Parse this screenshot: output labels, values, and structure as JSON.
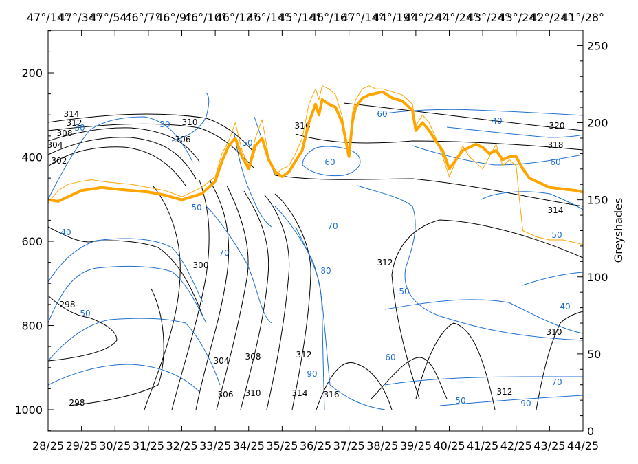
{
  "chart_data": {
    "type": "line",
    "title": "",
    "xlabel": "",
    "ylabel_left": "",
    "ylabel_right": "Greyshades",
    "top_tick_labels": [
      "47°/14°",
      "47°/34°",
      "47°/54°",
      "46°/7°",
      "46°/9°",
      "46°/10°",
      "46°/12°",
      "46°/14°",
      "45°/14°",
      "46°/16°",
      "47°/14°",
      "44°/19°",
      "44°/24°",
      "44°/24°",
      "43°/24°",
      "43°/24°",
      "42°/24°",
      "41°/28°"
    ],
    "bottom_tick_labels": [
      "28/25",
      "29/25",
      "30/25",
      "31/25",
      "32/25",
      "33/25",
      "34/25",
      "35/25",
      "36/25",
      "37/25",
      "38/25",
      "39/25",
      "40/25",
      "41/25",
      "42/25",
      "43/25",
      "44/25"
    ],
    "left_axis": {
      "ticks": [
        200,
        400,
        600,
        800,
        1000
      ],
      "ylim": [
        1050,
        100
      ],
      "note": "pressure hPa"
    },
    "right_axis": {
      "ticks": [
        0,
        50,
        100,
        150,
        200,
        250
      ],
      "ylim": [
        0,
        260
      ]
    },
    "colors": {
      "theta_isolines": "#000000",
      "humidity_isolines": "#1f6fd0",
      "greyshades": "#ffa500"
    },
    "isoline_labels_black": [
      "314",
      "312",
      "308",
      "304",
      "302",
      "310",
      "306",
      "316",
      "320",
      "318",
      "314",
      "300",
      "298",
      "298",
      "304",
      "306",
      "308",
      "310",
      "312",
      "314",
      "316",
      "312",
      "312",
      "310"
    ],
    "isoline_labels_blue": [
      "30",
      "30",
      "50",
      "40",
      "70",
      "50",
      "50",
      "70",
      "80",
      "60",
      "60",
      "40",
      "60",
      "50",
      "50",
      "40",
      "90",
      "60",
      "50",
      "70",
      "90"
    ],
    "series": [
      {
        "name": "",
        "axis": "right",
        "x": [
          28.0,
          28.3,
          28.6,
          29.0,
          29.3,
          29.6,
          30.0,
          30.5,
          31.0,
          31.5,
          32.0,
          32.3,
          32.6,
          33.0,
          33.2,
          33.4,
          33.6,
          33.8,
          34.0,
          34.2,
          34.4,
          34.6,
          34.8,
          35.0,
          35.2,
          35.4,
          35.6,
          35.8,
          36.0,
          36.1,
          36.2,
          36.4,
          36.6,
          36.8,
          37.0,
          37.1,
          37.2,
          37.4,
          37.6,
          37.8,
          38.0,
          38.3,
          38.6,
          38.9,
          39.0,
          39.2,
          39.4,
          39.6,
          39.8,
          40.0,
          40.2,
          40.4,
          40.6,
          40.8,
          41.0,
          41.2,
          41.4,
          41.6,
          41.8,
          42.0,
          42.2,
          42.4,
          42.6,
          43.0,
          43.4,
          43.8,
          44.0
        ],
        "values": [
          150,
          149,
          152,
          156,
          157,
          158,
          157,
          156,
          155,
          153,
          150,
          152,
          154,
          162,
          175,
          185,
          190,
          178,
          170,
          185,
          190,
          176,
          168,
          165,
          168,
          175,
          182,
          200,
          212,
          205,
          215,
          212,
          210,
          200,
          178,
          200,
          210,
          216,
          218,
          219,
          220,
          216,
          214,
          208,
          195,
          200,
          195,
          188,
          182,
          170,
          176,
          182,
          184,
          186,
          184,
          180,
          182,
          176,
          178,
          178,
          170,
          164,
          162,
          158,
          157,
          156,
          155
        ]
      },
      {
        "name": "",
        "axis": "right",
        "x": [
          28.0,
          28.3,
          28.6,
          29.0,
          29.3,
          29.6,
          30.0,
          30.5,
          31.0,
          31.5,
          32.0,
          32.3,
          32.6,
          33.0,
          33.2,
          33.4,
          33.6,
          33.8,
          34.0,
          34.2,
          34.4,
          34.6,
          34.8,
          35.0,
          35.2,
          35.4,
          35.6,
          35.8,
          36.0,
          36.1,
          36.2,
          36.4,
          36.6,
          36.8,
          37.0,
          37.1,
          37.2,
          37.4,
          37.6,
          37.8,
          38.0,
          38.3,
          38.6,
          38.9,
          39.0,
          39.2,
          39.4,
          39.6,
          39.8,
          40.0,
          40.2,
          40.4,
          40.6,
          40.8,
          41.0,
          41.2,
          41.4,
          41.6,
          41.8,
          42.0,
          42.1,
          42.2,
          42.4,
          42.6,
          43.0,
          43.4,
          43.8,
          44.0
        ],
        "values": [
          148,
          156,
          160,
          162,
          163,
          162,
          161,
          160,
          158,
          156,
          152,
          155,
          158,
          165,
          180,
          188,
          200,
          182,
          172,
          190,
          202,
          178,
          166,
          170,
          172,
          180,
          190,
          212,
          222,
          215,
          224,
          222,
          218,
          204,
          180,
          206,
          215,
          222,
          224,
          222,
          222,
          220,
          218,
          212,
          198,
          205,
          200,
          190,
          178,
          165,
          175,
          185,
          178,
          174,
          170,
          178,
          186,
          172,
          176,
          172,
          150,
          130,
          128,
          126,
          124,
          124,
          122,
          121
        ]
      }
    ]
  }
}
